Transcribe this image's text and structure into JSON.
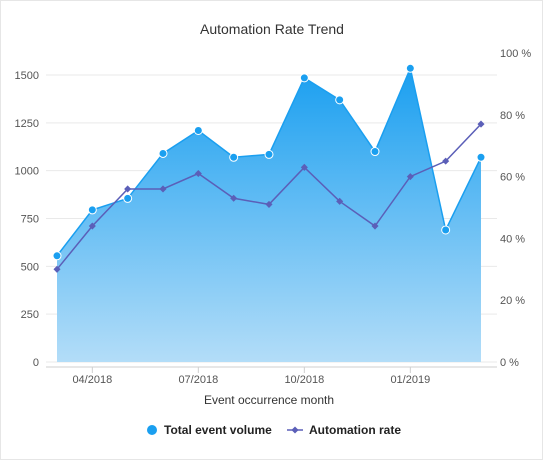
{
  "chart_data": {
    "type": "area+line",
    "title": "Automation Rate Trend",
    "xlabel": "Event occurrence month",
    "x_tick_labels": [
      "04/2018",
      "07/2018",
      "10/2018",
      "01/2019"
    ],
    "y_left": {
      "ylim": [
        0,
        1500
      ],
      "ticks": [
        "0",
        "250",
        "500",
        "750",
        "1000",
        "1250",
        "1500"
      ]
    },
    "y_right": {
      "ylim": [
        0,
        100
      ],
      "ticks": [
        "0 %",
        "20 %",
        "40 %",
        "60 %",
        "80 %",
        "100 %"
      ]
    },
    "grid": true,
    "legend_position": "bottom",
    "series": [
      {
        "name": "Total event volume",
        "type": "area",
        "axis": "left",
        "color": "#1a9ff0",
        "values": [
          555,
          795,
          855,
          1090,
          1210,
          1070,
          1085,
          1485,
          1370,
          1100,
          1535,
          690,
          1070
        ]
      },
      {
        "name": "Automation rate",
        "type": "line",
        "axis": "right",
        "color": "#5b5fb8",
        "values": [
          30,
          44,
          56,
          56,
          61,
          53,
          51,
          63,
          52,
          44,
          60,
          65,
          77
        ]
      }
    ]
  }
}
